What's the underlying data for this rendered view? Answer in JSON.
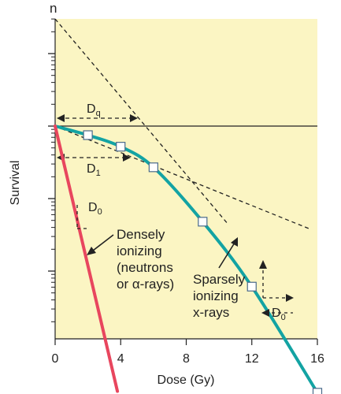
{
  "chart_data": {
    "type": "line",
    "xlabel": "Dose (Gy)",
    "ylabel": "Survival",
    "x_ticks": [
      "0",
      "4",
      "8",
      "12",
      "16"
    ],
    "xlim": [
      0,
      16
    ],
    "y_scale": "log",
    "extrapolation_label": "n",
    "series": [
      {
        "name": "Sparsely ionizing x-rays",
        "color": "#13a3a3",
        "points": [
          {
            "x": 0,
            "y": 1.0
          },
          {
            "x": 2,
            "y": 0.75
          },
          {
            "x": 4,
            "y": 0.52
          },
          {
            "x": 6,
            "y": 0.27
          },
          {
            "x": 9,
            "y": 0.048
          },
          {
            "x": 12,
            "y": 0.0061
          },
          {
            "x": 16,
            "y": 0.00021
          }
        ],
        "markers": [
          2,
          4,
          6,
          9,
          12,
          16
        ]
      },
      {
        "name": "Densely ionizing (neutrons or α-rays)",
        "color": "#e8465e",
        "points": [
          {
            "x": 0,
            "y": 1.0
          },
          {
            "x": 3.8,
            "y": 0.00022
          }
        ]
      }
    ],
    "annotations": {
      "dq": "D",
      "dq_sub": "q",
      "d1": "D",
      "d1_sub": "1",
      "d0_dense": "D",
      "d0_dense_sub": "0",
      "d0_sparse": "D",
      "d0_sparse_sub": "0",
      "dense_label": [
        "Densely",
        "ionizing",
        "(neutrons",
        "or α-rays)"
      ],
      "sparse_label": [
        "Sparsely",
        "ionizing",
        "x-rays"
      ]
    },
    "colors": {
      "background": "#fbf5c3",
      "sparse": "#13a3a3",
      "dense": "#e8465e",
      "marker_fill": "#ffffff",
      "marker_stroke": "#4a6a8a"
    }
  }
}
